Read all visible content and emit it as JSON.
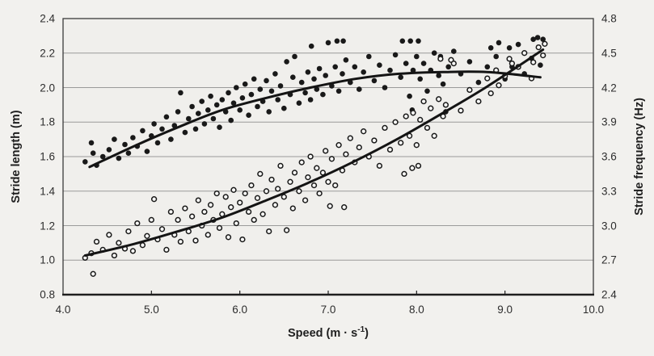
{
  "figure": {
    "background": "#f2f1ee",
    "plot_background": "#f0efec",
    "border_color": "#3b3b3b",
    "axis_color": "#1e1e1e",
    "grid_color": "#9a9a9a",
    "point_color": "#191919",
    "open_point_fill": "#f9f9f7",
    "curve_color": "#141414",
    "text_color": "#2d2d2d"
  },
  "chart_data": {
    "type": "scatter",
    "title": "",
    "xlabel": "Speed (m · s⁻¹)",
    "xlabel_main": "Speed (m · s",
    "xlabel_sup": "-1",
    "xlabel_end": ")",
    "ylabel_left": "Stride length (m)",
    "ylabel_right": "Stride frequency (Hz)",
    "grid": "horizontal-only",
    "legend": "none",
    "x_axis": {
      "min": 4.0,
      "max": 10.0,
      "tick_step": 1.0,
      "ticks": [
        "4.0",
        "5.0",
        "6.0",
        "7.0",
        "8.0",
        "9.0",
        "10.0"
      ],
      "tick_values": [
        4,
        5,
        6,
        7,
        8,
        9,
        10
      ]
    },
    "y_left": {
      "min": 0.8,
      "max": 2.4,
      "tick_step": 0.2,
      "ticks": [
        "0.8",
        "1.0",
        "1.2",
        "1.4",
        "1.6",
        "1.8",
        "2.0",
        "2.2",
        "2.4"
      ],
      "tick_values": [
        0.8,
        1.0,
        1.2,
        1.4,
        1.6,
        1.8,
        2.0,
        2.2,
        2.4
      ]
    },
    "y_right": {
      "min": 2.4,
      "max": 4.8,
      "tick_step": 0.3,
      "ticks": [
        "2.4",
        "2.7",
        "3.0",
        "3.3",
        "3.6",
        "3.9",
        "4.2",
        "4.5",
        "4.8"
      ],
      "tick_values": [
        2.4,
        2.7,
        3.0,
        3.3,
        3.6,
        3.9,
        4.2,
        4.5,
        4.8
      ]
    },
    "series": [
      {
        "name": "stride-length",
        "label": "Stride length",
        "marker": "filled-circle",
        "axis": "left",
        "points": [
          [
            4.25,
            1.57
          ],
          [
            4.32,
            1.68
          ],
          [
            4.34,
            1.62
          ],
          [
            4.38,
            1.55
          ],
          [
            4.45,
            1.6
          ],
          [
            4.52,
            1.64
          ],
          [
            4.58,
            1.7
          ],
          [
            4.63,
            1.59
          ],
          [
            4.7,
            1.67
          ],
          [
            4.74,
            1.62
          ],
          [
            4.79,
            1.71
          ],
          [
            4.84,
            1.66
          ],
          [
            4.9,
            1.75
          ],
          [
            4.95,
            1.63
          ],
          [
            5.0,
            1.72
          ],
          [
            5.03,
            1.79
          ],
          [
            5.07,
            1.68
          ],
          [
            5.12,
            1.76
          ],
          [
            5.17,
            1.83
          ],
          [
            5.22,
            1.7
          ],
          [
            5.26,
            1.78
          ],
          [
            5.3,
            1.86
          ],
          [
            5.33,
            1.97
          ],
          [
            5.38,
            1.74
          ],
          [
            5.42,
            1.82
          ],
          [
            5.46,
            1.89
          ],
          [
            5.5,
            1.76
          ],
          [
            5.53,
            1.85
          ],
          [
            5.57,
            1.92
          ],
          [
            5.6,
            1.79
          ],
          [
            5.64,
            1.87
          ],
          [
            5.67,
            1.95
          ],
          [
            5.7,
            1.82
          ],
          [
            5.74,
            1.9
          ],
          [
            5.77,
            1.77
          ],
          [
            5.8,
            1.93
          ],
          [
            5.84,
            1.86
          ],
          [
            5.87,
            1.97
          ],
          [
            5.9,
            1.81
          ],
          [
            5.93,
            1.91
          ],
          [
            5.96,
            2.0
          ],
          [
            6.0,
            1.87
          ],
          [
            6.03,
            1.94
          ],
          [
            6.06,
            2.02
          ],
          [
            6.1,
            1.84
          ],
          [
            6.13,
            1.96
          ],
          [
            6.16,
            2.05
          ],
          [
            6.2,
            1.89
          ],
          [
            6.23,
            1.99
          ],
          [
            6.26,
            1.92
          ],
          [
            6.3,
            2.04
          ],
          [
            6.33,
            1.86
          ],
          [
            6.36,
            1.98
          ],
          [
            6.4,
            2.08
          ],
          [
            6.43,
            1.93
          ],
          [
            6.46,
            2.01
          ],
          [
            6.5,
            1.88
          ],
          [
            6.53,
            2.15
          ],
          [
            6.57,
            1.96
          ],
          [
            6.6,
            2.06
          ],
          [
            6.62,
            2.18
          ],
          [
            6.67,
            1.91
          ],
          [
            6.7,
            2.03
          ],
          [
            6.74,
            1.97
          ],
          [
            6.77,
            2.09
          ],
          [
            6.8,
            1.93
          ],
          [
            6.81,
            2.24
          ],
          [
            6.84,
            2.05
          ],
          [
            6.87,
            1.99
          ],
          [
            6.9,
            2.11
          ],
          [
            6.94,
            1.96
          ],
          [
            6.97,
            2.07
          ],
          [
            7.0,
            2.26
          ],
          [
            7.04,
            2.01
          ],
          [
            7.08,
            2.12
          ],
          [
            7.1,
            2.27
          ],
          [
            7.12,
            1.98
          ],
          [
            7.16,
            2.08
          ],
          [
            7.17,
            2.27
          ],
          [
            7.2,
            2.16
          ],
          [
            7.25,
            2.03
          ],
          [
            7.3,
            2.12
          ],
          [
            7.35,
            1.99
          ],
          [
            7.4,
            2.09
          ],
          [
            7.46,
            2.18
          ],
          [
            7.52,
            2.04
          ],
          [
            7.58,
            2.13
          ],
          [
            7.64,
            2.0
          ],
          [
            7.7,
            2.1
          ],
          [
            7.76,
            2.19
          ],
          [
            7.82,
            2.06
          ],
          [
            7.84,
            2.27
          ],
          [
            7.88,
            2.14
          ],
          [
            7.92,
            1.95
          ],
          [
            7.93,
            2.27
          ],
          [
            7.95,
            1.87
          ],
          [
            7.96,
            2.1
          ],
          [
            8.0,
            2.18
          ],
          [
            8.02,
            2.27
          ],
          [
            8.04,
            2.05
          ],
          [
            8.08,
            2.14
          ],
          [
            8.12,
            1.98
          ],
          [
            8.16,
            2.1
          ],
          [
            8.2,
            2.2
          ],
          [
            8.25,
            2.07
          ],
          [
            8.27,
            2.18
          ],
          [
            8.3,
            2.02
          ],
          [
            8.33,
            1.86
          ],
          [
            8.36,
            2.12
          ],
          [
            8.42,
            2.21
          ],
          [
            8.5,
            2.08
          ],
          [
            8.6,
            2.15
          ],
          [
            8.7,
            2.03
          ],
          [
            8.8,
            2.12
          ],
          [
            8.84,
            2.23
          ],
          [
            8.9,
            2.18
          ],
          [
            8.93,
            2.26
          ],
          [
            9.0,
            2.05
          ],
          [
            9.05,
            2.23
          ],
          [
            9.08,
            2.12
          ],
          [
            9.15,
            2.25
          ],
          [
            9.22,
            2.08
          ],
          [
            9.3,
            2.17
          ],
          [
            9.32,
            2.28
          ],
          [
            9.37,
            2.29
          ],
          [
            9.4,
            2.13
          ],
          [
            9.43,
            2.28
          ]
        ]
      },
      {
        "name": "stride-frequency",
        "label": "Stride frequency",
        "marker": "open-circle",
        "axis": "right",
        "points": [
          [
            4.25,
            2.72
          ],
          [
            4.32,
            2.76
          ],
          [
            4.34,
            2.58
          ],
          [
            4.38,
            2.86
          ],
          [
            4.45,
            2.79
          ],
          [
            4.52,
            2.92
          ],
          [
            4.58,
            2.74
          ],
          [
            4.63,
            2.85
          ],
          [
            4.7,
            2.8
          ],
          [
            4.74,
            2.95
          ],
          [
            4.79,
            2.78
          ],
          [
            4.84,
            3.02
          ],
          [
            4.9,
            2.83
          ],
          [
            4.95,
            2.91
          ],
          [
            5.0,
            3.05
          ],
          [
            5.03,
            3.23
          ],
          [
            5.07,
            2.88
          ],
          [
            5.12,
            2.97
          ],
          [
            5.17,
            2.79
          ],
          [
            5.22,
            3.12
          ],
          [
            5.26,
            2.92
          ],
          [
            5.3,
            3.05
          ],
          [
            5.33,
            2.86
          ],
          [
            5.38,
            3.15
          ],
          [
            5.42,
            2.95
          ],
          [
            5.46,
            3.08
          ],
          [
            5.5,
            2.87
          ],
          [
            5.53,
            3.22
          ],
          [
            5.57,
            3.0
          ],
          [
            5.6,
            3.12
          ],
          [
            5.64,
            2.92
          ],
          [
            5.67,
            3.18
          ],
          [
            5.7,
            3.05
          ],
          [
            5.74,
            3.28
          ],
          [
            5.77,
            2.98
          ],
          [
            5.8,
            3.1
          ],
          [
            5.84,
            3.25
          ],
          [
            5.87,
            2.9
          ],
          [
            5.9,
            3.16
          ],
          [
            5.93,
            3.31
          ],
          [
            5.96,
            3.02
          ],
          [
            6.0,
            3.2
          ],
          [
            6.03,
            2.88
          ],
          [
            6.06,
            3.28
          ],
          [
            6.1,
            3.12
          ],
          [
            6.13,
            3.35
          ],
          [
            6.16,
            3.05
          ],
          [
            6.2,
            3.24
          ],
          [
            6.23,
            3.45
          ],
          [
            6.26,
            3.1
          ],
          [
            6.3,
            3.3
          ],
          [
            6.33,
            2.95
          ],
          [
            6.36,
            3.4
          ],
          [
            6.4,
            3.18
          ],
          [
            6.43,
            3.32
          ],
          [
            6.46,
            3.52
          ],
          [
            6.5,
            3.25
          ],
          [
            6.53,
            2.96
          ],
          [
            6.57,
            3.38
          ],
          [
            6.6,
            3.15
          ],
          [
            6.62,
            3.46
          ],
          [
            6.67,
            3.3
          ],
          [
            6.7,
            3.55
          ],
          [
            6.74,
            3.22
          ],
          [
            6.77,
            3.42
          ],
          [
            6.8,
            3.6
          ],
          [
            6.84,
            3.35
          ],
          [
            6.87,
            3.5
          ],
          [
            6.9,
            3.28
          ],
          [
            6.94,
            3.46
          ],
          [
            6.97,
            3.65
          ],
          [
            7.0,
            3.38
          ],
          [
            7.02,
            3.17
          ],
          [
            7.04,
            3.58
          ],
          [
            7.08,
            3.35
          ],
          [
            7.12,
            3.7
          ],
          [
            7.16,
            3.48
          ],
          [
            7.18,
            3.16
          ],
          [
            7.2,
            3.62
          ],
          [
            7.25,
            3.76
          ],
          [
            7.3,
            3.55
          ],
          [
            7.35,
            3.68
          ],
          [
            7.4,
            3.82
          ],
          [
            7.46,
            3.6
          ],
          [
            7.52,
            3.74
          ],
          [
            7.58,
            3.52
          ],
          [
            7.64,
            3.85
          ],
          [
            7.7,
            3.66
          ],
          [
            7.76,
            3.9
          ],
          [
            7.82,
            3.72
          ],
          [
            7.86,
            3.45
          ],
          [
            7.88,
            3.95
          ],
          [
            7.92,
            3.78
          ],
          [
            7.95,
            3.5
          ],
          [
            7.96,
            3.98
          ],
          [
            8.0,
            3.7
          ],
          [
            8.02,
            3.52
          ],
          [
            8.04,
            3.92
          ],
          [
            8.08,
            4.08
          ],
          [
            8.12,
            3.85
          ],
          [
            8.16,
            4.02
          ],
          [
            8.2,
            3.78
          ],
          [
            8.25,
            4.1
          ],
          [
            8.27,
            4.45
          ],
          [
            8.3,
            3.95
          ],
          [
            8.33,
            4.05
          ],
          [
            8.39,
            4.44
          ],
          [
            8.42,
            4.41
          ],
          [
            8.5,
            4.0
          ],
          [
            8.6,
            4.18
          ],
          [
            8.7,
            4.08
          ],
          [
            8.8,
            4.28
          ],
          [
            8.84,
            4.15
          ],
          [
            8.9,
            4.35
          ],
          [
            8.93,
            4.22
          ],
          [
            9.0,
            4.3
          ],
          [
            9.05,
            4.45
          ],
          [
            9.08,
            4.41
          ],
          [
            9.15,
            4.38
          ],
          [
            9.22,
            4.5
          ],
          [
            9.3,
            4.28
          ],
          [
            9.32,
            4.42
          ],
          [
            9.38,
            4.55
          ],
          [
            9.43,
            4.48
          ],
          [
            9.45,
            4.58
          ]
        ]
      }
    ],
    "fit_curves": [
      {
        "series": "stride-length",
        "axis": "left",
        "shape": "quadratic, rises then plateaus near 2.09 m around 8.5 m/s",
        "points": [
          [
            4.3,
            1.54
          ],
          [
            4.8,
            1.66
          ],
          [
            5.3,
            1.77
          ],
          [
            5.8,
            1.87
          ],
          [
            6.3,
            1.94
          ],
          [
            6.8,
            2.0
          ],
          [
            7.3,
            2.05
          ],
          [
            7.8,
            2.08
          ],
          [
            8.3,
            2.09
          ],
          [
            8.8,
            2.09
          ],
          [
            9.4,
            2.06
          ]
        ]
      },
      {
        "series": "stride-frequency",
        "axis": "right",
        "shape": "quadratic, accelerates upward from 2.74 Hz to 4.53 Hz",
        "points": [
          [
            4.25,
            2.74
          ],
          [
            4.8,
            2.84
          ],
          [
            5.3,
            2.95
          ],
          [
            5.8,
            3.07
          ],
          [
            6.3,
            3.22
          ],
          [
            6.8,
            3.38
          ],
          [
            7.3,
            3.56
          ],
          [
            7.8,
            3.76
          ],
          [
            8.3,
            3.98
          ],
          [
            8.8,
            4.21
          ],
          [
            9.43,
            4.53
          ]
        ]
      }
    ]
  }
}
